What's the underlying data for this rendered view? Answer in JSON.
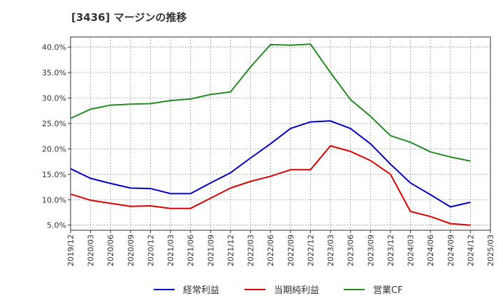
{
  "chart_data": {
    "type": "line",
    "title": "[3436]  マージンの推移",
    "x": [
      "2019/12",
      "2020/03",
      "2020/06",
      "2020/09",
      "2020/12",
      "2021/03",
      "2021/06",
      "2021/09",
      "2021/12",
      "2022/03",
      "2022/06",
      "2022/09",
      "2022/12",
      "2023/03",
      "2023/06",
      "2023/09",
      "2023/12",
      "2024/03",
      "2024/06",
      "2024/09",
      "2024/12",
      "2025/03"
    ],
    "y_ticks": [
      "5.0%",
      "10.0%",
      "15.0%",
      "20.0%",
      "25.0%",
      "30.0%",
      "35.0%",
      "40.0%"
    ],
    "y_tick_values": [
      5,
      10,
      15,
      20,
      25,
      30,
      35,
      40
    ],
    "ylim": [
      4.0,
      42.0
    ],
    "grid": true,
    "legend_position": "bottom",
    "series": [
      {
        "name": "経常利益",
        "color": "#0000cc",
        "values": [
          16.1,
          14.2,
          13.2,
          12.3,
          12.2,
          11.2,
          11.2,
          13.3,
          15.3,
          18.2,
          21.0,
          24.0,
          25.3,
          25.5,
          24.0,
          21.0,
          17.0,
          13.3,
          11.0,
          8.6,
          9.5,
          null
        ]
      },
      {
        "name": "当期純利益",
        "color": "#dd0000",
        "values": [
          11.1,
          9.9,
          9.3,
          8.7,
          8.8,
          8.3,
          8.3,
          10.3,
          12.3,
          13.6,
          14.6,
          15.9,
          15.9,
          20.6,
          19.5,
          17.7,
          15.0,
          7.7,
          6.7,
          5.3,
          5.0,
          null
        ]
      },
      {
        "name": "営業CF",
        "color": "#228b22",
        "values": [
          26.0,
          27.8,
          28.6,
          28.8,
          28.9,
          29.5,
          29.8,
          30.7,
          31.2,
          36.1,
          40.5,
          40.4,
          40.6,
          35.0,
          29.7,
          26.4,
          22.6,
          21.3,
          19.4,
          18.4,
          17.6,
          null
        ]
      }
    ]
  }
}
